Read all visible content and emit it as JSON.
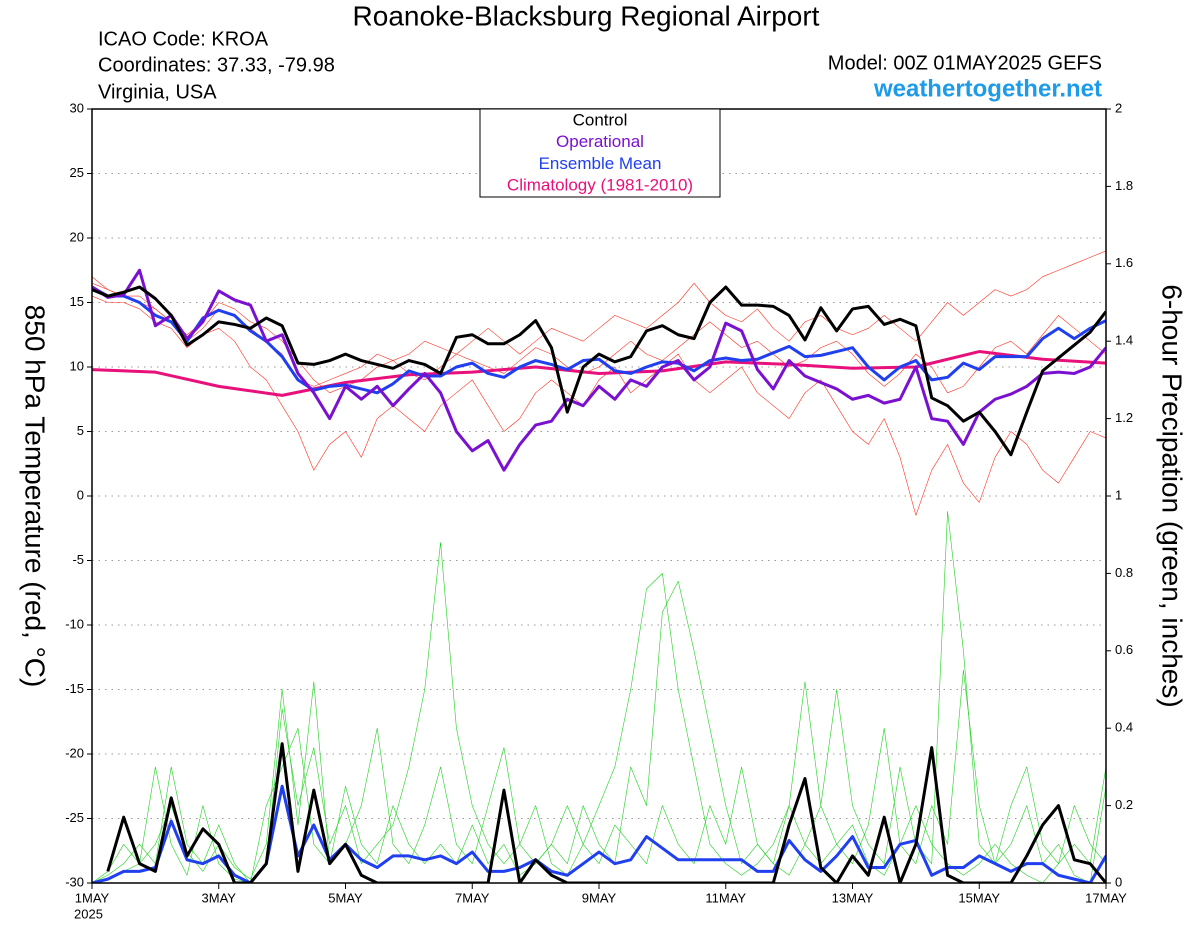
{
  "chart_data": {
    "type": "line",
    "title": "Roanoke-Blacksburg Regional Airport",
    "info": [
      "ICAO Code: KROA",
      "Coordinates: 37.33, -79.98",
      "Virginia, USA"
    ],
    "model": "Model: 00Z 01MAY2025 GEFS",
    "site": "weathertogether.net",
    "ylabel": "850 hPa Temperature (red, °C)",
    "y2label": "6-hour Precipation (green, inches)",
    "year": "2025",
    "grid": true,
    "xlim": [
      1,
      17
    ],
    "xticks": [
      {
        "value": 1,
        "label": "1MAY"
      },
      {
        "value": 3,
        "label": "3MAY"
      },
      {
        "value": 5,
        "label": "5MAY"
      },
      {
        "value": 7,
        "label": "7MAY"
      },
      {
        "value": 9,
        "label": "9MAY"
      },
      {
        "value": 11,
        "label": "11MAY"
      },
      {
        "value": 13,
        "label": "13MAY"
      },
      {
        "value": 15,
        "label": "15MAY"
      },
      {
        "value": 17,
        "label": "17MAY"
      }
    ],
    "ylim": [
      -30,
      30
    ],
    "yticks": [
      -30,
      -25,
      -20,
      -15,
      -10,
      -5,
      0,
      5,
      10,
      15,
      20,
      25,
      30
    ],
    "y2lim": [
      0,
      2
    ],
    "y2ticks": [
      0,
      0.2,
      0.4,
      0.6,
      0.8,
      1,
      1.2,
      1.4,
      1.6,
      1.8,
      2
    ],
    "x": [
      1,
      1.25,
      1.5,
      1.75,
      2,
      2.25,
      2.5,
      2.75,
      3,
      3.25,
      3.5,
      3.75,
      4,
      4.25,
      4.5,
      4.75,
      5,
      5.25,
      5.5,
      5.75,
      6,
      6.25,
      6.5,
      6.75,
      7,
      7.25,
      7.5,
      7.75,
      8,
      8.25,
      8.5,
      8.75,
      9,
      9.25,
      9.5,
      9.75,
      10,
      10.25,
      10.5,
      10.75,
      11,
      11.25,
      11.5,
      11.75,
      12,
      12.25,
      12.5,
      12.75,
      13,
      13.25,
      13.5,
      13.75,
      14,
      14.25,
      14.5,
      14.75,
      15,
      15.25,
      15.5,
      15.75,
      16,
      16.25,
      16.5,
      16.75,
      17
    ],
    "series": [
      {
        "name": "Control",
        "color": "#000000",
        "line_width": 3,
        "values": [
          16,
          15.5,
          15.8,
          16.2,
          15.3,
          14,
          11.7,
          12.5,
          13.5,
          13.3,
          13,
          13.8,
          13.2,
          10.3,
          10.2,
          10.5,
          11,
          10.5,
          10.2,
          9.9,
          10.5,
          10.2,
          9.5,
          12.3,
          12.5,
          11.8,
          11.8,
          12.5,
          13.6,
          11.5,
          6.5,
          10,
          11,
          10.4,
          10.8,
          12.8,
          13.2,
          12.5,
          12.2,
          15,
          16.2,
          14.8,
          14.8,
          14.7,
          14,
          12.1,
          14.6,
          12.8,
          14.5,
          14.7,
          13.3,
          13.7,
          13.2,
          7.6,
          7,
          5.8,
          6.5,
          5,
          3.2,
          6.5,
          9.7,
          10.7,
          11.7,
          12.7,
          14.3
        ]
      },
      {
        "name": "Operational",
        "color": "#7a10d0",
        "line_width": 3,
        "values": [
          16.2,
          15.4,
          15.6,
          17.5,
          13.2,
          14,
          12.2,
          13.5,
          15.9,
          15.2,
          14.8,
          12,
          12.5,
          9.5,
          8,
          6,
          8.5,
          7.5,
          8.5,
          7,
          8.3,
          9.5,
          8,
          5,
          3.5,
          4.3,
          2,
          4,
          5.5,
          5.8,
          7.5,
          7,
          8.5,
          7.5,
          9,
          8.5,
          10,
          10.5,
          9,
          10,
          13.4,
          12.8,
          9.8,
          8.3,
          10.5,
          9.3,
          8.8,
          8.3,
          7.5,
          7.8,
          7.2,
          7.5,
          10,
          6,
          5.8,
          4,
          6.5,
          7.5,
          7.9,
          8.5,
          9.5,
          9.6,
          9.5,
          10,
          11.5
        ]
      },
      {
        "name": "Ensemble Mean",
        "color": "#2040f0",
        "line_width": 3,
        "values": [
          16.2,
          15.5,
          15.5,
          15,
          14,
          13.5,
          12,
          13.8,
          14.4,
          14,
          12.8,
          12,
          10.8,
          9,
          8.2,
          8.5,
          8.6,
          8.3,
          8,
          8.7,
          9.7,
          9.3,
          9.3,
          10,
          10.3,
          9.5,
          9.2,
          10,
          10.5,
          10.2,
          9.8,
          10.5,
          10.6,
          9.7,
          9.5,
          10,
          10.4,
          10.3,
          9.7,
          10.5,
          10.7,
          10.5,
          10.6,
          11.1,
          11.6,
          10.8,
          10.9,
          11.2,
          11.5,
          10,
          9,
          10,
          10.5,
          9,
          9.2,
          10.3,
          9.8,
          10.8,
          10.8,
          10.8,
          12.2,
          13,
          12.2,
          13,
          13.6
        ]
      },
      {
        "name": "Climatology (1981-2010)",
        "color": "#e8107a",
        "line_width": 3,
        "x": [
          1,
          2,
          3,
          4,
          5,
          6,
          7,
          8,
          9,
          10,
          11,
          12,
          13,
          14,
          15,
          16,
          17
        ],
        "values": [
          9.8,
          9.6,
          8.5,
          7.8,
          8.8,
          9.4,
          9.6,
          10,
          9.5,
          9.7,
          10.4,
          10.2,
          9.9,
          10,
          11.2,
          10.6,
          10.3
        ]
      },
      {
        "color": "#000000",
        "line_width": 3,
        "axis": "y2",
        "values": [
          null,
          0.03,
          0.17,
          0.05,
          0.03,
          0.22,
          0.07,
          0.14,
          0.1,
          0,
          0,
          0.05,
          0.36,
          0.03,
          0.24,
          0.05,
          0.1,
          0.02,
          0,
          0,
          0,
          0,
          0,
          0,
          0,
          0,
          0.24,
          0,
          0.06,
          0.02,
          0,
          0,
          0,
          0,
          0,
          0,
          0,
          0,
          0,
          0,
          0,
          0,
          0,
          0,
          0.15,
          0.27,
          0.04,
          0,
          0.07,
          0.02,
          0.17,
          0,
          0.1,
          0.35,
          0.02,
          0,
          0,
          0,
          0,
          0.07,
          0.15,
          0.2,
          0.06,
          0.05,
          0
        ]
      },
      {
        "color": "#2040f0",
        "line_width": 3,
        "axis": "y2",
        "values": [
          0,
          0.01,
          0.03,
          0.03,
          0.04,
          0.16,
          0.06,
          0.05,
          0.07,
          0.02,
          0,
          0.05,
          0.25,
          0.07,
          0.15,
          0.06,
          0.1,
          0.06,
          0.04,
          0.07,
          0.07,
          0.06,
          0.07,
          0.05,
          0.08,
          0.03,
          0.03,
          0.04,
          0.06,
          0.03,
          0.02,
          0.05,
          0.08,
          0.05,
          0.06,
          0.12,
          0.09,
          0.06,
          0.06,
          0.06,
          0.06,
          0.06,
          0.03,
          0.03,
          0.11,
          0.06,
          0.03,
          0.07,
          0.12,
          0.04,
          0.04,
          0.1,
          0.11,
          0.02,
          0.04,
          0.04,
          0.07,
          0.05,
          0.03,
          0.05,
          0.05,
          0.02,
          0.01,
          0,
          0.07
        ]
      },
      {
        "color": "#ff3020",
        "line_width": 0.6,
        "values": [
          16.5,
          16,
          15.5,
          15,
          14.5,
          13.5,
          12,
          13,
          14.5,
          14,
          13,
          12,
          11,
          9,
          8.5,
          9,
          9.5,
          10,
          11,
          10.5,
          11,
          12,
          11.5,
          11,
          12,
          13,
          12,
          11,
          12,
          13,
          12.5,
          12,
          13,
          14,
          13.5,
          13,
          14,
          15,
          16.5,
          15,
          14,
          13.5,
          14.5,
          13,
          12,
          13.5,
          14,
          13,
          12.5,
          13,
          14,
          13,
          12,
          13.5,
          15,
          14,
          15,
          16,
          15.5,
          16,
          17,
          17.5,
          18,
          18.5,
          19
        ]
      },
      {
        "color": "#ff3020",
        "line_width": 0.6,
        "values": [
          15.5,
          15,
          15,
          14.5,
          13.5,
          13,
          11.5,
          12.5,
          13,
          12,
          10,
          9,
          7,
          5,
          2,
          4,
          5,
          3,
          6,
          7,
          6,
          5,
          7,
          8,
          9,
          7,
          5,
          6,
          8,
          9,
          8,
          7,
          9,
          10,
          8,
          9,
          10,
          11,
          9,
          8,
          9,
          10,
          8,
          7,
          6,
          8,
          9,
          7,
          5,
          4,
          6,
          3,
          -1.5,
          2,
          4,
          1,
          -0.5,
          3,
          5,
          4,
          2,
          1,
          3,
          5,
          4.5
        ]
      },
      {
        "color": "#ff3020",
        "line_width": 0.6,
        "values": [
          17,
          16,
          15.5,
          15.5,
          14.5,
          13.5,
          12.5,
          13.5,
          15,
          14.5,
          13.5,
          13,
          12,
          10.5,
          9,
          8,
          8.5,
          9,
          10,
          10.5,
          9.5,
          9,
          10,
          11,
          10.5,
          10,
          9.5,
          10.5,
          11.5,
          11,
          10,
          9.5,
          10,
          11,
          12,
          11,
          10.5,
          11.5,
          12.5,
          13.5,
          12.5,
          11.5,
          12,
          11,
          10,
          10.5,
          11.5,
          12,
          11,
          9.5,
          8.5,
          9.5,
          11,
          10,
          8,
          8.5,
          10,
          11.5,
          12,
          11,
          12.5,
          14,
          13,
          12,
          11
        ]
      },
      {
        "color": "#20d020",
        "line_width": 0.6,
        "axis": "y2",
        "values": [
          0,
          0.02,
          0.05,
          0.1,
          0.05,
          0.3,
          0.1,
          0.05,
          0.15,
          0.05,
          0,
          0.05,
          0.45,
          0.2,
          0.35,
          0.1,
          0.2,
          0.05,
          0.1,
          0.15,
          0.3,
          0.5,
          0.88,
          0.4,
          0.2,
          0.1,
          0.05,
          0.1,
          0.2,
          0.05,
          0.02,
          0.1,
          0.2,
          0.3,
          0.5,
          0.76,
          0.8,
          0.5,
          0.3,
          0.1,
          0.05,
          0.02,
          0.05,
          0.1,
          0.2,
          0.1,
          0.05,
          0.1,
          0.15,
          0.05,
          0.02,
          0.1,
          0.2,
          0.1,
          0.05,
          0.02,
          0.05,
          0.1,
          0.05,
          0.02,
          0,
          0.05,
          0.1,
          0.05,
          0.3
        ]
      },
      {
        "color": "#20d020",
        "line_width": 0.6,
        "axis": "y2",
        "values": [
          0,
          0.01,
          0.03,
          0.05,
          0.1,
          0.2,
          0.08,
          0.03,
          0.1,
          0.04,
          0.01,
          0.1,
          0.5,
          0.15,
          0.52,
          0.05,
          0.1,
          0.2,
          0.4,
          0.1,
          0.05,
          0.15,
          0.3,
          0.1,
          0.05,
          0.2,
          0.35,
          0.1,
          0.05,
          0.1,
          0.05,
          0.2,
          0.1,
          0.05,
          0.3,
          0.2,
          0.7,
          0.78,
          0.6,
          0.4,
          0.2,
          0.05,
          0.1,
          0.05,
          0.02,
          0.1,
          0.2,
          0.5,
          0.2,
          0.1,
          0.05,
          0.3,
          0.1,
          0.05,
          0.96,
          0.6,
          0.1,
          0.05,
          0.2,
          0.3,
          0.1,
          0.05,
          0.2,
          0.1,
          0.05
        ]
      },
      {
        "color": "#20d020",
        "line_width": 0.6,
        "axis": "y2",
        "values": [
          0,
          0.03,
          0.1,
          0.05,
          0.3,
          0.1,
          0.02,
          0.2,
          0.05,
          0.01,
          0,
          0.2,
          0.3,
          0.4,
          0.1,
          0.05,
          0.25,
          0.1,
          0.05,
          0.2,
          0.1,
          0.05,
          0.1,
          0.05,
          0.15,
          0.05,
          0.1,
          0.02,
          0.05,
          0.1,
          0.2,
          0.1,
          0.05,
          0.15,
          0.1,
          0.05,
          0.2,
          0.1,
          0.05,
          0.2,
          0.1,
          0.3,
          0.1,
          0.05,
          0.2,
          0.52,
          0.2,
          0.1,
          0.05,
          0.15,
          0.4,
          0.1,
          0.05,
          0.2,
          0.1,
          0.55,
          0.2,
          0.05,
          0.1,
          0.2,
          0.05,
          0.1,
          0.02,
          0,
          0.25
        ]
      }
    ]
  }
}
